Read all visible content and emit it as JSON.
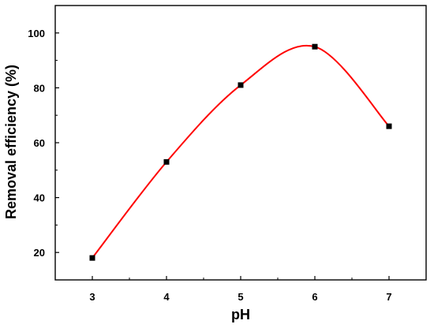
{
  "chart_data": {
    "type": "scatter",
    "title": "",
    "xlabel": "pH",
    "ylabel": "Removal efficiency (%)",
    "xlim": [
      2.5,
      7.5
    ],
    "ylim": [
      10,
      110
    ],
    "x_ticks": [
      3,
      4,
      5,
      6,
      7
    ],
    "y_ticks": [
      20,
      40,
      60,
      80,
      100
    ],
    "grid": false,
    "legend": "none",
    "series": [
      {
        "x": [
          3,
          4,
          5,
          6,
          7
        ],
        "y": [
          18,
          53,
          81,
          95,
          66
        ],
        "marker": "square",
        "marker_color": "#000000",
        "fit_line": "smooth curve",
        "line_color": "#ff0000"
      }
    ]
  }
}
